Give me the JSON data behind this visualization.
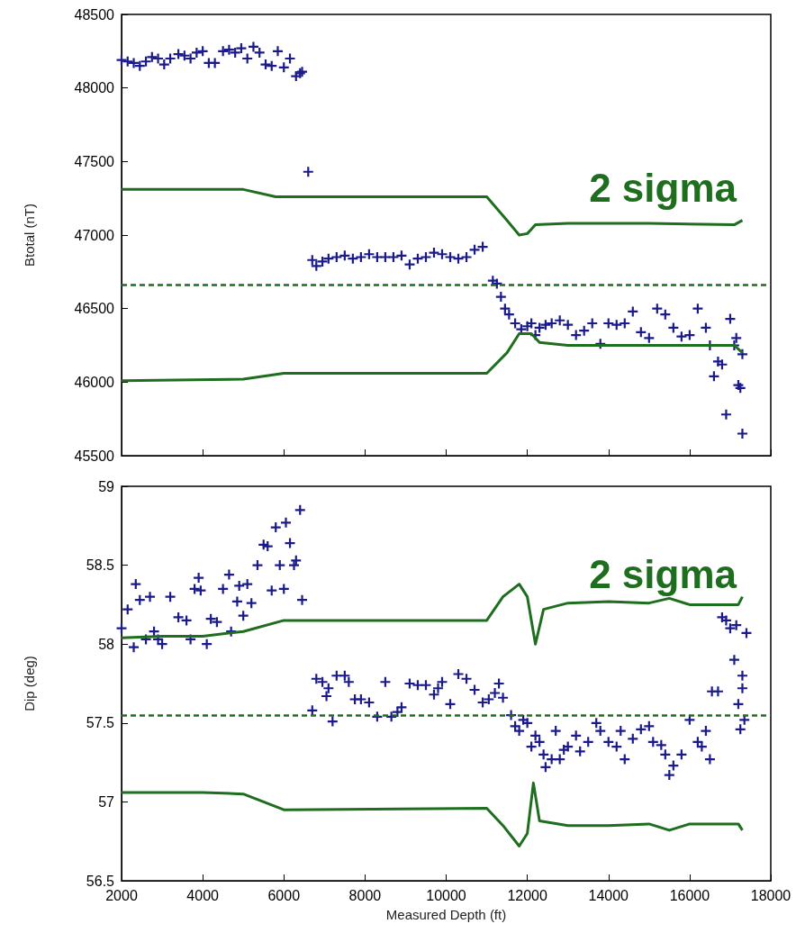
{
  "chart_data": [
    {
      "type": "scatter",
      "ylabel": "Btotal (nT)",
      "xlim": [
        2000,
        18000
      ],
      "xticks": [
        2000,
        4000,
        6000,
        8000,
        10000,
        12000,
        14000,
        16000,
        18000
      ],
      "ylim": [
        45500,
        48500
      ],
      "yticks": [
        45500,
        46000,
        46500,
        47000,
        47500,
        48000,
        48500
      ],
      "tick_labels": "y",
      "grid": false,
      "marker": "cross",
      "annotations": [
        "2 sigma"
      ],
      "ref_lines": [
        {
          "axis": "y",
          "value": 46660,
          "color": "#1f6e1f",
          "line_style": "dashed"
        }
      ],
      "series": [
        {
          "color": "#1a1a8c",
          "x": [
            2000,
            2150,
            2300,
            2450,
            2600,
            2750,
            2900,
            3050,
            3200,
            3400,
            3550,
            3700,
            3850,
            4000,
            4150,
            4300,
            4500,
            4650,
            4800,
            4950,
            5100,
            5250,
            5400,
            5550,
            5700,
            5850,
            6000,
            6150,
            6300,
            6400,
            6450,
            6600,
            6700,
            6800,
            6950,
            7100,
            7300,
            7500,
            7700,
            7900,
            8100,
            8300,
            8500,
            8700,
            8900,
            9100,
            9300,
            9500,
            9700,
            9900,
            10100,
            10300,
            10500,
            10700,
            10900,
            11150,
            11250,
            11350,
            11450,
            11550,
            11700,
            11850,
            12000,
            12100,
            12200,
            12300,
            12450,
            12600,
            12800,
            13000,
            13200,
            13400,
            13600,
            13800,
            14000,
            14200,
            14400,
            14600,
            14800,
            15000,
            15200,
            15400,
            15600,
            15800,
            16000,
            16200,
            16400,
            16500,
            16600,
            16700,
            16800,
            16900,
            17000,
            17100,
            17150,
            17200,
            17250,
            17300,
            17300
          ],
          "values": [
            48190,
            48180,
            48170,
            48150,
            48180,
            48210,
            48200,
            48160,
            48200,
            48230,
            48220,
            48200,
            48240,
            48250,
            48170,
            48170,
            48250,
            48260,
            48240,
            48270,
            48200,
            48280,
            48240,
            48160,
            48150,
            48250,
            48140,
            48200,
            48080,
            48100,
            48110,
            47430,
            46830,
            46790,
            46820,
            46840,
            46850,
            46860,
            46840,
            46850,
            46870,
            46850,
            46850,
            46850,
            46860,
            46800,
            46840,
            46850,
            46880,
            46870,
            46850,
            46840,
            46850,
            46900,
            46920,
            46690,
            46670,
            46580,
            46500,
            46460,
            46400,
            46360,
            46380,
            46400,
            46320,
            46370,
            46390,
            46400,
            46420,
            46390,
            46320,
            46350,
            46400,
            46260,
            46400,
            46390,
            46400,
            46480,
            46340,
            46300,
            46500,
            46460,
            46370,
            46310,
            46320,
            46500,
            46370,
            46250,
            46040,
            46140,
            46120,
            45780,
            46430,
            46250,
            46300,
            45980,
            45960,
            46190,
            45650
          ]
        },
        {
          "type": "line",
          "color": "#1f6e1f",
          "marker": "none",
          "line_style": "solid",
          "x": [
            2000,
            5000,
            5800,
            11000,
            11500,
            11800,
            12000,
            12200,
            13000,
            15000,
            17100,
            17300
          ],
          "values": [
            47310,
            47310,
            47260,
            47260,
            47100,
            47000,
            47010,
            47070,
            47080,
            47080,
            47070,
            47100
          ]
        },
        {
          "type": "line",
          "color": "#1f6e1f",
          "marker": "none",
          "line_style": "solid",
          "x": [
            2000,
            5000,
            6000,
            11000,
            11500,
            11800,
            12100,
            12300,
            13000,
            15000,
            17100,
            17300
          ],
          "values": [
            46010,
            46020,
            46060,
            46060,
            46200,
            46330,
            46330,
            46270,
            46250,
            46250,
            46250,
            46200
          ]
        }
      ]
    },
    {
      "type": "scatter",
      "xlabel": "Measured Depth (ft)",
      "ylabel": "Dip (deg)",
      "xlim": [
        2000,
        18000
      ],
      "xticks": [
        2000,
        4000,
        6000,
        8000,
        10000,
        12000,
        14000,
        16000,
        18000
      ],
      "ylim": [
        56.5,
        59
      ],
      "yticks": [
        56.5,
        57,
        57.5,
        58,
        58.5,
        59
      ],
      "grid": false,
      "marker": "cross",
      "annotations": [
        "2 sigma"
      ],
      "ref_lines": [
        {
          "axis": "y",
          "value": 57.55,
          "color": "#1f6e1f",
          "line_style": "dashed"
        }
      ],
      "series": [
        {
          "color": "#1a1a8c",
          "x": [
            2000,
            2150,
            2300,
            2350,
            2450,
            2600,
            2700,
            2800,
            2900,
            3000,
            3200,
            3400,
            3600,
            3700,
            3800,
            3900,
            3950,
            4100,
            4200,
            4350,
            4500,
            4650,
            4700,
            4850,
            4900,
            5000,
            5100,
            5200,
            5350,
            5500,
            5600,
            5700,
            5800,
            5900,
            6000,
            6050,
            6150,
            6250,
            6300,
            6400,
            6450,
            6700,
            6800,
            6950,
            7050,
            7100,
            7200,
            7300,
            7500,
            7600,
            7750,
            7900,
            8100,
            8300,
            8500,
            8650,
            8800,
            8900,
            9100,
            9300,
            9500,
            9700,
            9800,
            9900,
            10100,
            10300,
            10500,
            10700,
            10900,
            11050,
            11200,
            11300,
            11400,
            11600,
            11700,
            11800,
            11900,
            12000,
            12100,
            12200,
            12300,
            12400,
            12450,
            12600,
            12700,
            12800,
            12900,
            13000,
            13200,
            13300,
            13500,
            13700,
            13800,
            14000,
            14200,
            14300,
            14400,
            14600,
            14800,
            15000,
            15100,
            15300,
            15400,
            15500,
            15600,
            15800,
            16000,
            16200,
            16300,
            16400,
            16500,
            16550,
            16700,
            16800,
            16900,
            17000,
            17100,
            17150,
            17200,
            17250,
            17300,
            17300,
            17350,
            17400
          ],
          "values": [
            58.1,
            58.22,
            57.98,
            58.38,
            58.28,
            58.03,
            58.3,
            58.08,
            58.03,
            58.0,
            58.3,
            58.17,
            58.15,
            58.03,
            58.35,
            58.42,
            58.34,
            58.0,
            58.16,
            58.14,
            58.35,
            58.44,
            58.08,
            58.27,
            58.37,
            58.18,
            58.38,
            58.26,
            58.5,
            58.63,
            58.62,
            58.34,
            58.74,
            58.5,
            58.35,
            58.77,
            58.64,
            58.5,
            58.53,
            58.85,
            58.28,
            57.58,
            57.78,
            57.76,
            57.67,
            57.72,
            57.51,
            57.8,
            57.8,
            57.76,
            57.65,
            57.65,
            57.63,
            57.54,
            57.76,
            57.54,
            57.57,
            57.6,
            57.75,
            57.74,
            57.74,
            57.68,
            57.72,
            57.76,
            57.62,
            57.81,
            57.78,
            57.71,
            57.63,
            57.65,
            57.69,
            57.75,
            57.66,
            57.55,
            57.48,
            57.45,
            57.52,
            57.5,
            57.35,
            57.42,
            57.38,
            57.3,
            57.22,
            57.27,
            57.45,
            57.27,
            57.33,
            57.35,
            57.42,
            57.32,
            57.38,
            57.5,
            57.45,
            57.38,
            57.35,
            57.45,
            57.27,
            57.4,
            57.46,
            57.48,
            57.38,
            57.36,
            57.3,
            57.17,
            57.23,
            57.3,
            57.52,
            57.38,
            57.35,
            57.45,
            57.27,
            57.7,
            57.7,
            58.17,
            58.15,
            58.1,
            57.9,
            58.12,
            57.62,
            57.46,
            57.8,
            57.72,
            57.52,
            58.07
          ]
        },
        {
          "type": "line",
          "color": "#1f6e1f",
          "marker": "none",
          "line_style": "solid",
          "x": [
            2000,
            3000,
            4000,
            5000,
            6000,
            11000,
            11400,
            11800,
            12000,
            12200,
            12400,
            13000,
            14000,
            15000,
            15500,
            16000,
            17200,
            17300
          ],
          "values": [
            58.04,
            58.05,
            58.05,
            58.08,
            58.15,
            58.15,
            58.3,
            58.38,
            58.3,
            58.0,
            58.22,
            58.26,
            58.27,
            58.26,
            58.29,
            58.25,
            58.25,
            58.3
          ]
        },
        {
          "type": "line",
          "color": "#1f6e1f",
          "marker": "none",
          "line_style": "solid",
          "x": [
            2000,
            4000,
            5000,
            6000,
            11000,
            11400,
            11800,
            12000,
            12150,
            12300,
            13000,
            14000,
            15000,
            15500,
            16000,
            17200,
            17300
          ],
          "values": [
            57.06,
            57.06,
            57.05,
            56.95,
            56.96,
            56.85,
            56.72,
            56.8,
            57.12,
            56.88,
            56.85,
            56.85,
            56.86,
            56.82,
            56.86,
            56.86,
            56.82
          ]
        }
      ]
    }
  ]
}
